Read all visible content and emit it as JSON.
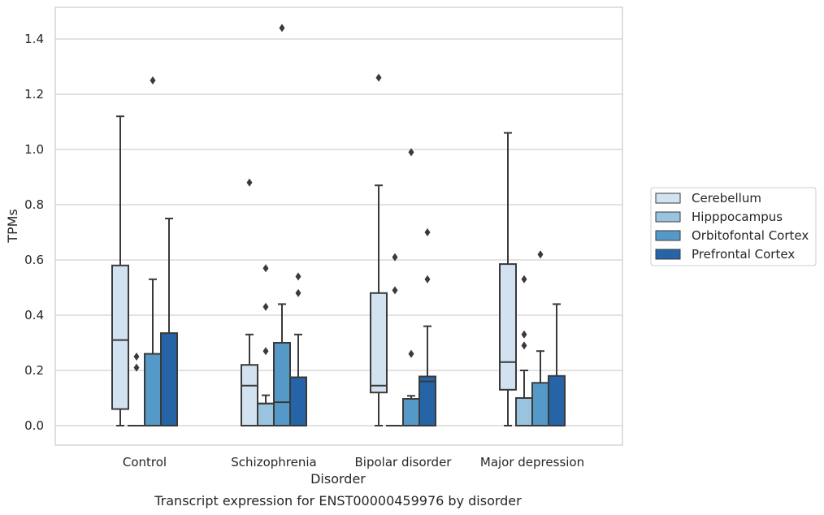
{
  "chart_data": {
    "type": "box",
    "title": "",
    "caption": "Transcript expression for ENST00000459976 by disorder",
    "xlabel": "Disorder",
    "ylabel": "TPMs",
    "ylim": [
      -0.07,
      1.52
    ],
    "yticks": [
      "0.0",
      "0.2",
      "0.4",
      "0.6",
      "0.8",
      "1.0",
      "1.2",
      "1.4"
    ],
    "grid": true,
    "legend_position": "right",
    "categories": [
      "Control",
      "Schizophrenia",
      "Bipolar disorder",
      "Major depression"
    ],
    "series": [
      {
        "name": "Cerebellum",
        "color": "#d2e2f1",
        "boxes": [
          {
            "min": 0.0,
            "q1": 0.06,
            "median": 0.31,
            "q3": 0.58,
            "max": 1.12,
            "outliers": []
          },
          {
            "min": 0.0,
            "q1": 0.0,
            "median": 0.145,
            "q3": 0.22,
            "max": 0.33,
            "outliers": [
              0.88
            ]
          },
          {
            "min": 0.0,
            "q1": 0.12,
            "median": 0.145,
            "q3": 0.48,
            "max": 0.87,
            "outliers": [
              1.26
            ]
          },
          {
            "min": 0.0,
            "q1": 0.13,
            "median": 0.23,
            "q3": 0.585,
            "max": 1.06,
            "outliers": []
          }
        ]
      },
      {
        "name": "Hipppocampus",
        "color": "#99c3de",
        "boxes": [
          {
            "min": 0.0,
            "q1": 0.0,
            "median": 0.0,
            "q3": 0.0,
            "max": 0.0,
            "outliers": [
              0.21,
              0.25
            ]
          },
          {
            "min": 0.0,
            "q1": 0.0,
            "median": 0.08,
            "q3": 0.08,
            "max": 0.11,
            "outliers": [
              0.27,
              0.43,
              0.57
            ]
          },
          {
            "min": 0.0,
            "q1": 0.0,
            "median": 0.0,
            "q3": 0.0,
            "max": 0.0,
            "outliers": [
              0.49,
              0.61
            ]
          },
          {
            "min": 0.0,
            "q1": 0.0,
            "median": 0.0,
            "q3": 0.1,
            "max": 0.2,
            "outliers": [
              0.29,
              0.33,
              0.53
            ]
          }
        ]
      },
      {
        "name": "Orbitofontal Cortex",
        "color": "#5599c8",
        "boxes": [
          {
            "min": 0.0,
            "q1": 0.0,
            "median": 0.0,
            "q3": 0.26,
            "max": 0.53,
            "outliers": [
              1.25
            ]
          },
          {
            "min": 0.0,
            "q1": 0.0,
            "median": 0.085,
            "q3": 0.3,
            "max": 0.44,
            "outliers": [
              1.44
            ]
          },
          {
            "min": 0.0,
            "q1": 0.0,
            "median": 0.0,
            "q3": 0.097,
            "max": 0.108,
            "outliers": [
              0.26,
              0.99
            ]
          },
          {
            "min": 0.0,
            "q1": 0.0,
            "median": 0.0,
            "q3": 0.155,
            "max": 0.27,
            "outliers": [
              0.62
            ]
          }
        ]
      },
      {
        "name": "Prefrontal Cortex",
        "color": "#2565a7",
        "boxes": [
          {
            "min": 0.0,
            "q1": 0.0,
            "median": 0.0,
            "q3": 0.335,
            "max": 0.75,
            "outliers": []
          },
          {
            "min": 0.0,
            "q1": 0.0,
            "median": 0.0,
            "q3": 0.175,
            "max": 0.33,
            "outliers": [
              0.48,
              0.54
            ]
          },
          {
            "min": 0.0,
            "q1": 0.0,
            "median": 0.16,
            "q3": 0.178,
            "max": 0.36,
            "outliers": [
              0.53,
              0.7
            ]
          },
          {
            "min": 0.0,
            "q1": 0.0,
            "median": 0.0,
            "q3": 0.18,
            "max": 0.44,
            "outliers": []
          }
        ]
      }
    ]
  }
}
